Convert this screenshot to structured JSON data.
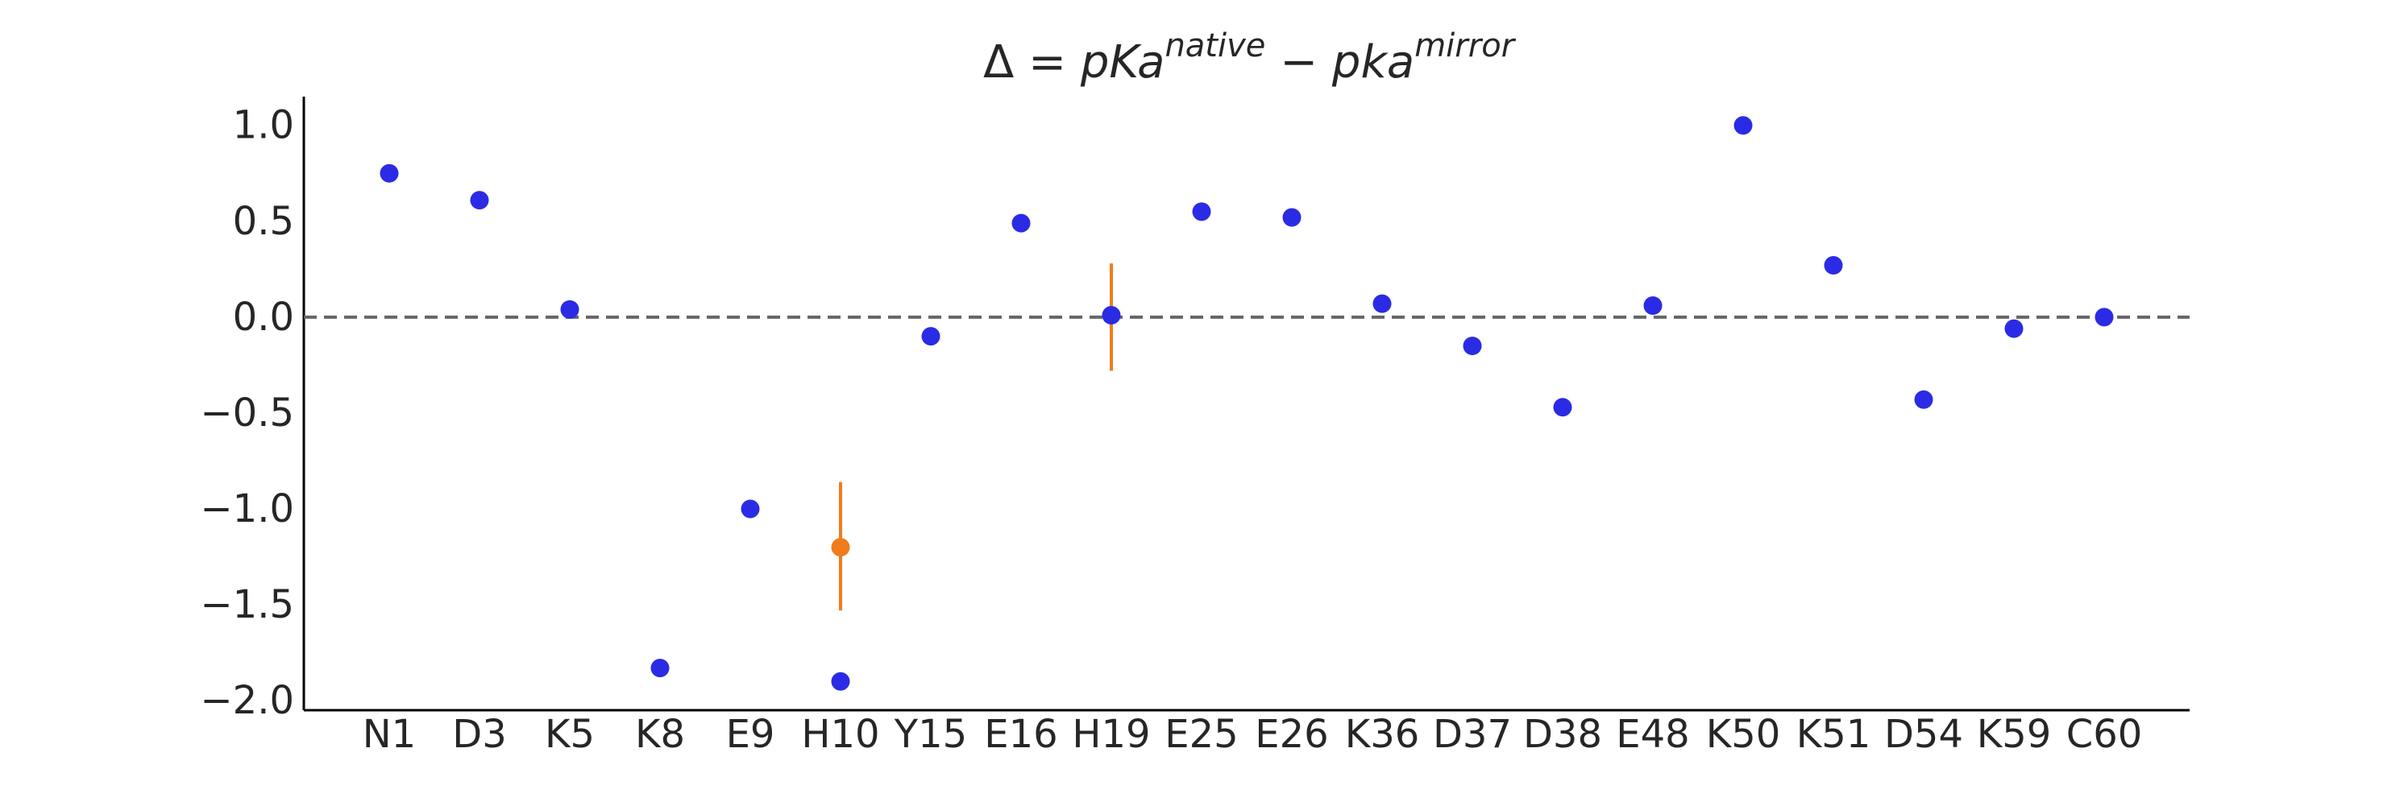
{
  "chart_data": {
    "type": "scatter",
    "title": {
      "delta": "Δ",
      "eq": " = ",
      "term1_base": "pKa",
      "term1_sup": "native",
      "minus": " − ",
      "term2_base": "pka",
      "term2_sup": "mirror"
    },
    "xlabel": "",
    "ylabel": "",
    "categories": [
      "N1",
      "D3",
      "K5",
      "K8",
      "E9",
      "H10",
      "Y15",
      "E16",
      "H19",
      "E25",
      "E26",
      "K36",
      "D37",
      "D38",
      "E48",
      "K50",
      "K51",
      "D54",
      "K59",
      "C60"
    ],
    "ylim": [
      -2.05,
      1.15
    ],
    "yticks": [
      1.0,
      0.5,
      0.0,
      -0.5,
      -1.0,
      -1.5,
      -2.0
    ],
    "ytick_labels": [
      "1.0",
      "0.5",
      "0.0",
      "−0.5",
      "−1.0",
      "−1.5",
      "−2.0"
    ],
    "grid": false,
    "reference_line": {
      "y": 0.0,
      "style": "dashed",
      "color": "#666666"
    },
    "series": [
      {
        "color": "#2b2be6",
        "points": [
          {
            "x": "N1",
            "y": 0.75
          },
          {
            "x": "D3",
            "y": 0.61
          },
          {
            "x": "K5",
            "y": 0.04
          },
          {
            "x": "K8",
            "y": -1.83
          },
          {
            "x": "E9",
            "y": -1.0
          },
          {
            "x": "H10",
            "y": -1.9
          },
          {
            "x": "Y15",
            "y": -0.1
          },
          {
            "x": "E16",
            "y": 0.49
          },
          {
            "x": "H19",
            "y": 0.01
          },
          {
            "x": "E25",
            "y": 0.55
          },
          {
            "x": "E26",
            "y": 0.52
          },
          {
            "x": "K36",
            "y": 0.07
          },
          {
            "x": "D37",
            "y": -0.15
          },
          {
            "x": "D38",
            "y": -0.47
          },
          {
            "x": "E48",
            "y": 0.06
          },
          {
            "x": "K50",
            "y": 1.0
          },
          {
            "x": "K51",
            "y": 0.27
          },
          {
            "x": "D54",
            "y": -0.43
          },
          {
            "x": "K59",
            "y": -0.06
          },
          {
            "x": "C60",
            "y": 0.0
          }
        ]
      },
      {
        "color": "#f07c1d",
        "points": [
          {
            "x": "H10",
            "y": -1.2,
            "ymin": -1.53,
            "ymax": -0.86
          }
        ]
      },
      {
        "color": "#f07c1d",
        "error_bar_only": true,
        "points": [
          {
            "x": "H19",
            "y": 0.0,
            "ymin": -0.28,
            "ymax": 0.28
          }
        ]
      }
    ]
  }
}
